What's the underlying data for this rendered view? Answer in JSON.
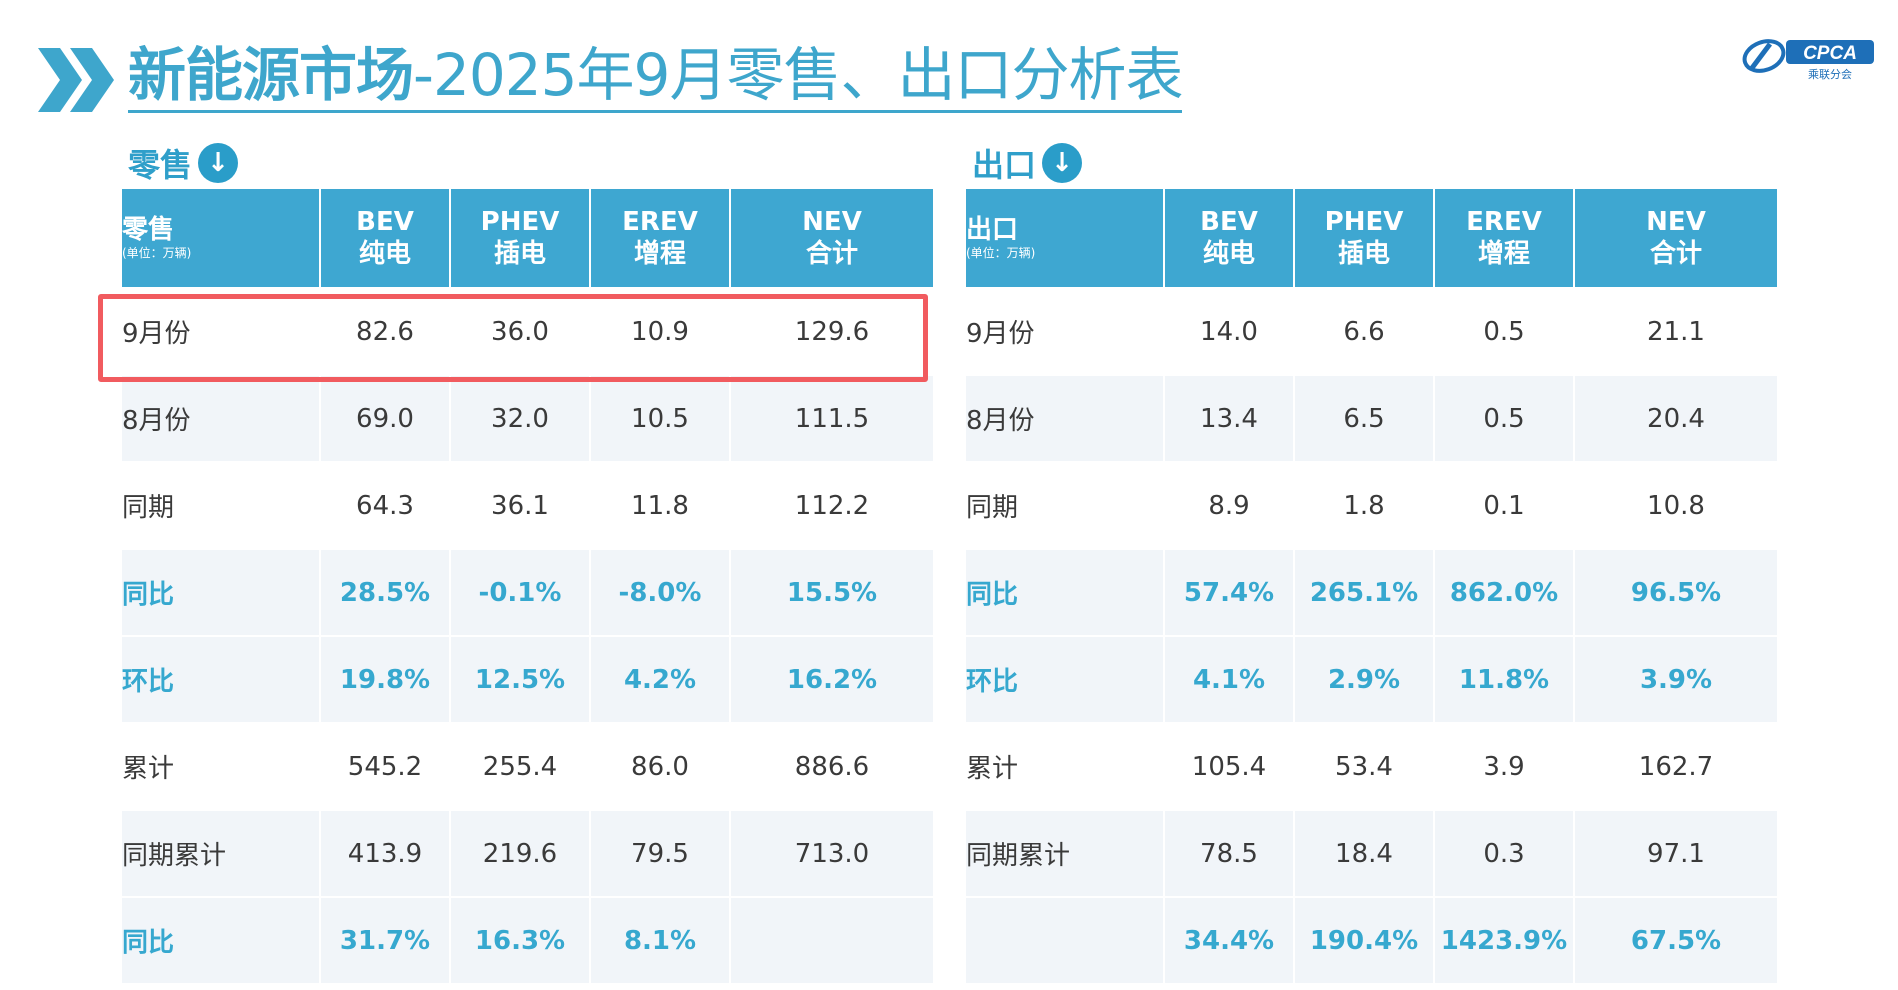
{
  "header": {
    "title_bold": "新能源市场",
    "title_rest": "-2025年9月零售、出口分析表",
    "logo_text": "CPCA",
    "logo_sub": "乘联分会"
  },
  "retail": {
    "caption": "零售",
    "header_label": "零售",
    "header_unit": "(单位：万辆)",
    "columns": [
      {
        "top": "BEV",
        "bottom": "纯电"
      },
      {
        "top": "PHEV",
        "bottom": "插电"
      },
      {
        "top": "EREV",
        "bottom": "增程"
      },
      {
        "top": "NEV",
        "bottom": "合计"
      }
    ],
    "rows": [
      {
        "label": "9月份",
        "values": [
          "82.6",
          "36.0",
          "10.9",
          "129.6"
        ]
      },
      {
        "label": "8月份",
        "values": [
          "69.0",
          "32.0",
          "10.5",
          "111.5"
        ]
      },
      {
        "label": "同期",
        "values": [
          "64.3",
          "36.1",
          "11.8",
          "112.2"
        ]
      },
      {
        "label": "同比",
        "values": [
          "28.5%",
          "-0.1%",
          "-8.0%",
          "15.5%"
        ]
      },
      {
        "label": "环比",
        "values": [
          "19.8%",
          "12.5%",
          "4.2%",
          "16.2%"
        ]
      },
      {
        "label": "累计",
        "values": [
          "545.2",
          "255.4",
          "86.0",
          "886.6"
        ]
      },
      {
        "label": "同期累计",
        "values": [
          "413.9",
          "219.6",
          "79.5",
          "713.0"
        ]
      },
      {
        "label": "同比",
        "values": [
          "31.7%",
          "16.3%",
          "8.1%",
          ""
        ]
      }
    ]
  },
  "export": {
    "caption": "出口",
    "header_label": "出口",
    "header_unit": "(单位：万辆)",
    "columns": [
      {
        "top": "BEV",
        "bottom": "纯电"
      },
      {
        "top": "PHEV",
        "bottom": "插电"
      },
      {
        "top": "EREV",
        "bottom": "增程"
      },
      {
        "top": "NEV",
        "bottom": "合计"
      }
    ],
    "rows": [
      {
        "label": "9月份",
        "values": [
          "14.0",
          "6.6",
          "0.5",
          "21.1"
        ]
      },
      {
        "label": "8月份",
        "values": [
          "13.4",
          "6.5",
          "0.5",
          "20.4"
        ]
      },
      {
        "label": "同期",
        "values": [
          "8.9",
          "1.8",
          "0.1",
          "10.8"
        ]
      },
      {
        "label": "同比",
        "values": [
          "57.4%",
          "265.1%",
          "862.0%",
          "96.5%"
        ]
      },
      {
        "label": "环比",
        "values": [
          "4.1%",
          "2.9%",
          "11.8%",
          "3.9%"
        ]
      },
      {
        "label": "累计",
        "values": [
          "105.4",
          "53.4",
          "3.9",
          "162.7"
        ]
      },
      {
        "label": "同期累计",
        "values": [
          "78.5",
          "18.4",
          "0.3",
          "97.1"
        ]
      },
      {
        "label": "",
        "values": [
          "34.4%",
          "190.4%",
          "1423.9%",
          "67.5%"
        ]
      }
    ]
  }
}
